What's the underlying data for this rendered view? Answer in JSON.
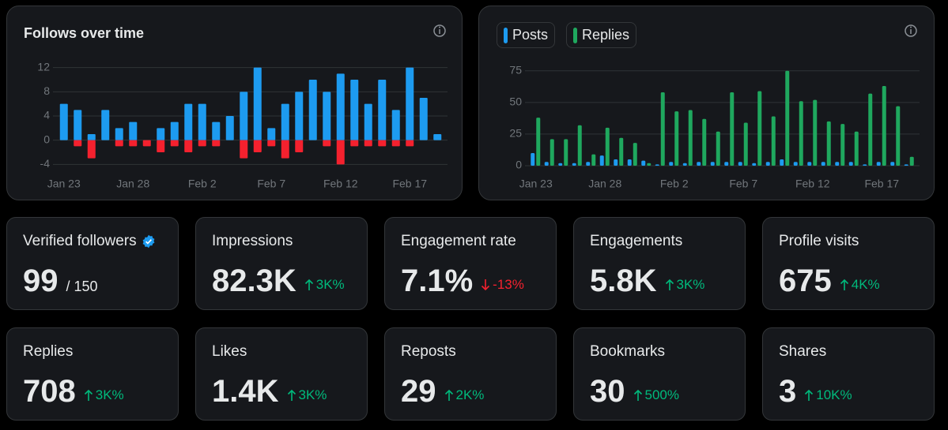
{
  "chart_data": [
    {
      "type": "bar",
      "title": "Follows over time",
      "categories": [
        "Jan 23",
        null,
        null,
        null,
        null,
        "Jan 28",
        null,
        null,
        null,
        null,
        "Feb 2",
        null,
        null,
        null,
        null,
        "Feb 7",
        null,
        null,
        null,
        null,
        "Feb 12",
        null,
        null,
        null,
        null,
        "Feb 17",
        null,
        null
      ],
      "series": [
        {
          "color": "#1d9bf0",
          "values": [
            6,
            5,
            1,
            5,
            2,
            3,
            0,
            2,
            3,
            6,
            6,
            3,
            4,
            8,
            12,
            2,
            6,
            8,
            10,
            8,
            11,
            10,
            6,
            10,
            5,
            12,
            7,
            1
          ]
        },
        {
          "color": "#f4212e",
          "values": [
            0,
            -1,
            -3,
            0,
            -1,
            -1,
            -1,
            -2,
            -1,
            -2,
            -1,
            -1,
            0,
            -3,
            -2,
            -1,
            -3,
            -2,
            0,
            -1,
            -4,
            -1,
            -1,
            -1,
            -1,
            -1,
            0,
            0
          ]
        }
      ],
      "ylim": [
        -5,
        13
      ],
      "yticks": [
        12,
        8,
        4,
        0,
        -4
      ],
      "grid": true
    },
    {
      "type": "bar",
      "categories": [
        "Jan 23",
        null,
        null,
        null,
        null,
        "Jan 28",
        null,
        null,
        null,
        null,
        "Feb 2",
        null,
        null,
        null,
        null,
        "Feb 7",
        null,
        null,
        null,
        null,
        "Feb 12",
        null,
        null,
        null,
        null,
        "Feb 17",
        null,
        null
      ],
      "series": [
        {
          "name": "Posts",
          "color": "#1d9bf0",
          "values": [
            10,
            3,
            2,
            2,
            3,
            8,
            5,
            5,
            4,
            1,
            3,
            2,
            3,
            3,
            3,
            3,
            2,
            3,
            5,
            3,
            3,
            3,
            3,
            3,
            1,
            3,
            3,
            1
          ]
        },
        {
          "name": "Replies",
          "color": "#1fa85e",
          "values": [
            38,
            21,
            21,
            32,
            9,
            30,
            22,
            18,
            2,
            58,
            43,
            44,
            37,
            27,
            58,
            34,
            59,
            39,
            75,
            51,
            52,
            35,
            33,
            27,
            57,
            63,
            47,
            7
          ]
        }
      ],
      "ylim": [
        0,
        78
      ],
      "yticks": [
        75,
        50,
        25,
        0
      ],
      "grid": true,
      "legend": "top-left"
    }
  ],
  "cards": [
    {
      "label": "Verified followers",
      "value": "99",
      "suffix": "/ 150"
    },
    {
      "label": "Impressions",
      "value": "82.3K",
      "change": "3K%",
      "trend": "up"
    },
    {
      "label": "Engagement rate",
      "value": "7.1%",
      "change": "-13%",
      "trend": "down"
    },
    {
      "label": "Engagements",
      "value": "5.8K",
      "change": "3K%",
      "trend": "up"
    },
    {
      "label": "Profile visits",
      "value": "675",
      "change": "4K%",
      "trend": "up"
    },
    {
      "label": "Replies",
      "value": "708",
      "change": "3K%",
      "trend": "up"
    },
    {
      "label": "Likes",
      "value": "1.4K",
      "change": "3K%",
      "trend": "up"
    },
    {
      "label": "Reposts",
      "value": "29",
      "change": "2K%",
      "trend": "up"
    },
    {
      "label": "Bookmarks",
      "value": "30",
      "change": "500%",
      "trend": "up"
    },
    {
      "label": "Shares",
      "value": "3",
      "change": "10K%",
      "trend": "up"
    }
  ]
}
